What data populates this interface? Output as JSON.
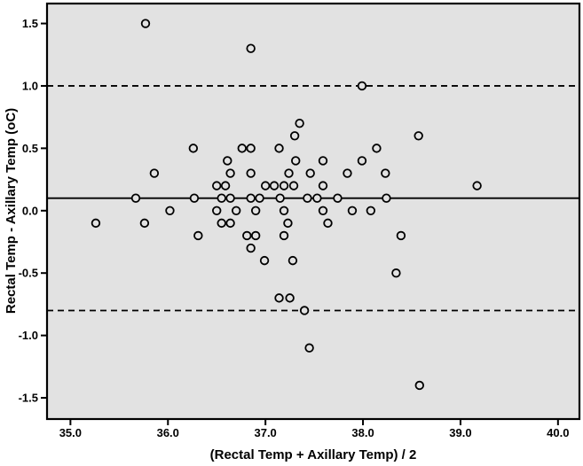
{
  "figure": {
    "outer_background": "#ffffff",
    "plot_background": "#e2e2e2",
    "line_color": "#000000",
    "marker_style": "open-circle"
  },
  "chart_data": {
    "type": "scatter",
    "title": "",
    "xlabel": "(Rectal Temp + Axillary Temp) / 2",
    "ylabel": "Rectal Temp - Axillary Temp (oC)",
    "xlim": [
      34.76,
      40.22
    ],
    "ylim": [
      -1.67,
      1.66
    ],
    "x_ticks": [
      35.0,
      36.0,
      37.0,
      38.0,
      39.0,
      40.0
    ],
    "x_tick_labels": [
      "35.0",
      "36.0",
      "37.0",
      "38.0",
      "39.0",
      "40.0"
    ],
    "y_ticks": [
      -1.5,
      -1.0,
      -0.5,
      0.0,
      0.5,
      1.0,
      1.5
    ],
    "y_tick_labels": [
      "-1.5",
      "-1.0",
      "-0.5",
      "0.0",
      "0.5",
      "1.0",
      "1.5"
    ],
    "grid": false,
    "legend": false,
    "reference_lines": [
      {
        "name": "mean-difference-line",
        "y": 0.1,
        "style": "solid"
      },
      {
        "name": "upper-limit-line",
        "y": 1.0,
        "style": "dashed"
      },
      {
        "name": "lower-limit-line",
        "y": -0.8,
        "style": "dashed"
      }
    ],
    "points": [
      [
        35.77,
        1.5
      ],
      [
        36.85,
        1.3
      ],
      [
        37.99,
        1.0
      ],
      [
        37.35,
        0.7
      ],
      [
        37.3,
        0.6
      ],
      [
        38.57,
        0.6
      ],
      [
        36.26,
        0.5
      ],
      [
        36.76,
        0.5
      ],
      [
        36.85,
        0.5
      ],
      [
        37.14,
        0.5
      ],
      [
        38.14,
        0.5
      ],
      [
        36.61,
        0.4
      ],
      [
        37.31,
        0.4
      ],
      [
        37.59,
        0.4
      ],
      [
        37.99,
        0.4
      ],
      [
        35.86,
        0.3
      ],
      [
        36.64,
        0.3
      ],
      [
        36.85,
        0.3
      ],
      [
        37.24,
        0.3
      ],
      [
        37.46,
        0.3
      ],
      [
        37.84,
        0.3
      ],
      [
        38.23,
        0.3
      ],
      [
        36.5,
        0.2
      ],
      [
        36.59,
        0.2
      ],
      [
        37.0,
        0.2
      ],
      [
        37.09,
        0.2
      ],
      [
        37.19,
        0.2
      ],
      [
        37.29,
        0.2
      ],
      [
        37.59,
        0.2
      ],
      [
        39.17,
        0.2
      ],
      [
        35.67,
        0.1
      ],
      [
        36.27,
        0.1
      ],
      [
        36.55,
        0.1
      ],
      [
        36.64,
        0.1
      ],
      [
        36.85,
        0.1
      ],
      [
        36.94,
        0.1
      ],
      [
        37.15,
        0.1
      ],
      [
        37.43,
        0.1
      ],
      [
        37.53,
        0.1
      ],
      [
        37.74,
        0.1
      ],
      [
        38.24,
        0.1
      ],
      [
        36.02,
        0.0
      ],
      [
        36.5,
        0.0
      ],
      [
        36.7,
        0.0
      ],
      [
        36.9,
        0.0
      ],
      [
        37.19,
        0.0
      ],
      [
        37.59,
        0.0
      ],
      [
        37.89,
        0.0
      ],
      [
        38.08,
        0.0
      ],
      [
        35.26,
        -0.1
      ],
      [
        35.76,
        -0.1
      ],
      [
        36.55,
        -0.1
      ],
      [
        36.64,
        -0.1
      ],
      [
        37.23,
        -0.1
      ],
      [
        37.64,
        -0.1
      ],
      [
        36.31,
        -0.2
      ],
      [
        36.81,
        -0.2
      ],
      [
        36.9,
        -0.2
      ],
      [
        37.19,
        -0.2
      ],
      [
        38.39,
        -0.2
      ],
      [
        36.85,
        -0.3
      ],
      [
        36.99,
        -0.4
      ],
      [
        37.28,
        -0.4
      ],
      [
        38.34,
        -0.5
      ],
      [
        37.14,
        -0.7
      ],
      [
        37.25,
        -0.7
      ],
      [
        37.4,
        -0.8
      ],
      [
        37.45,
        -1.1
      ],
      [
        38.58,
        -1.4
      ]
    ]
  }
}
